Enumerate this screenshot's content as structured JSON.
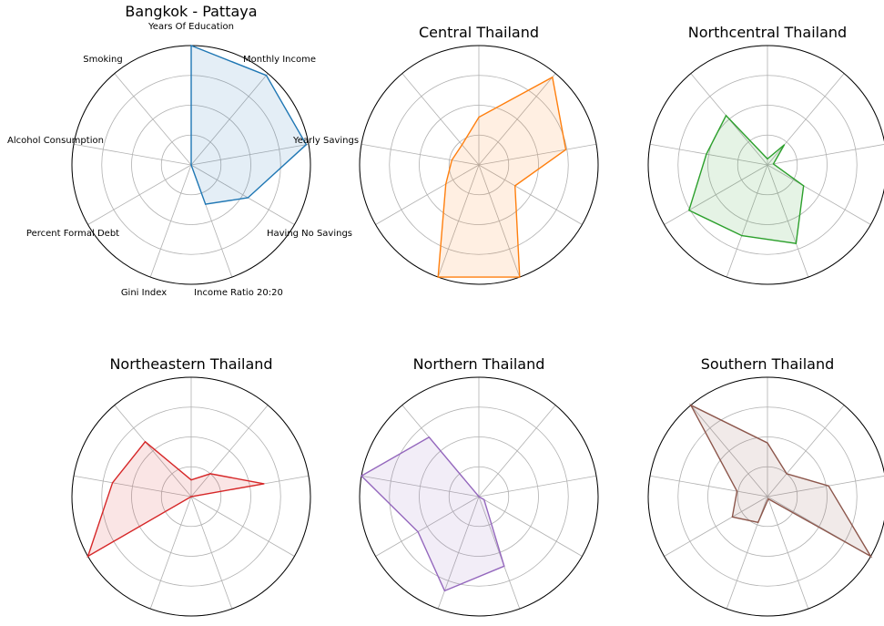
{
  "chart_data": [
    {
      "type": "radar",
      "title": "Bangkok - Pattaya",
      "color": "#1f77b4",
      "axes": [
        "Years Of Education",
        "Monthly Income",
        "Yearly Savings",
        "Having No Savings",
        "Income Ratio 20:20",
        "Gini Index",
        "Percent Formal Debt",
        "Alcohol Consumption",
        "Smoking"
      ],
      "show_axis_labels": true,
      "rlim": [
        0,
        1
      ],
      "rings": 4,
      "values": [
        1.0,
        0.98,
        0.98,
        0.55,
        0.35,
        0.0,
        0.0,
        0.0,
        0.0
      ]
    },
    {
      "type": "radar",
      "title": "Central Thailand",
      "color": "#ff7f0e",
      "axes": [
        "Years Of Education",
        "Monthly Income",
        "Yearly Savings",
        "Having No Savings",
        "Income Ratio 20:20",
        "Gini Index",
        "Percent Formal Debt",
        "Alcohol Consumption",
        "Smoking"
      ],
      "show_axis_labels": false,
      "rlim": [
        0,
        1
      ],
      "rings": 4,
      "values": [
        0.4,
        0.96,
        0.74,
        0.35,
        1.0,
        1.0,
        0.32,
        0.23,
        0.22
      ]
    },
    {
      "type": "radar",
      "title": "Northcentral Thailand",
      "color": "#2ca02c",
      "axes": [
        "Years Of Education",
        "Monthly Income",
        "Yearly Savings",
        "Having No Savings",
        "Income Ratio 20:20",
        "Gini Index",
        "Percent Formal Debt",
        "Alcohol Consumption",
        "Smoking"
      ],
      "show_axis_labels": false,
      "rlim": [
        0,
        1
      ],
      "rings": 4,
      "values": [
        0.05,
        0.22,
        0.05,
        0.35,
        0.7,
        0.63,
        0.76,
        0.52,
        0.54
      ]
    },
    {
      "type": "radar",
      "title": "Northeastern Thailand",
      "color": "#d62728",
      "axes": [
        "Years Of Education",
        "Monthly Income",
        "Yearly Savings",
        "Having No Savings",
        "Income Ratio 20:20",
        "Gini Index",
        "Percent Formal Debt",
        "Alcohol Consumption",
        "Smoking"
      ],
      "show_axis_labels": false,
      "rlim": [
        0,
        1
      ],
      "rings": 4,
      "values": [
        0.14,
        0.25,
        0.62,
        0.0,
        0.0,
        0.0,
        1.0,
        0.67,
        0.6
      ]
    },
    {
      "type": "radar",
      "title": "Northern Thailand",
      "color": "#9467bd",
      "axes": [
        "Years Of Education",
        "Monthly Income",
        "Yearly Savings",
        "Having No Savings",
        "Income Ratio 20:20",
        "Gini Index",
        "Percent Formal Debt",
        "Alcohol Consumption",
        "Smoking"
      ],
      "show_axis_labels": false,
      "rlim": [
        0,
        1
      ],
      "rings": 4,
      "values": [
        0.0,
        0.0,
        0.0,
        0.05,
        0.62,
        0.84,
        0.59,
        1.0,
        0.65
      ]
    },
    {
      "type": "radar",
      "title": "Southern Thailand",
      "color": "#8c564b",
      "axes": [
        "Years Of Education",
        "Monthly Income",
        "Yearly Savings",
        "Having No Savings",
        "Income Ratio 20:20",
        "Gini Index",
        "Percent Formal Debt",
        "Alcohol Consumption",
        "Smoking"
      ],
      "show_axis_labels": false,
      "rlim": [
        0,
        1
      ],
      "rings": 4,
      "values": [
        0.45,
        0.25,
        0.52,
        1.0,
        0.02,
        0.23,
        0.34,
        0.26,
        1.0
      ]
    }
  ]
}
